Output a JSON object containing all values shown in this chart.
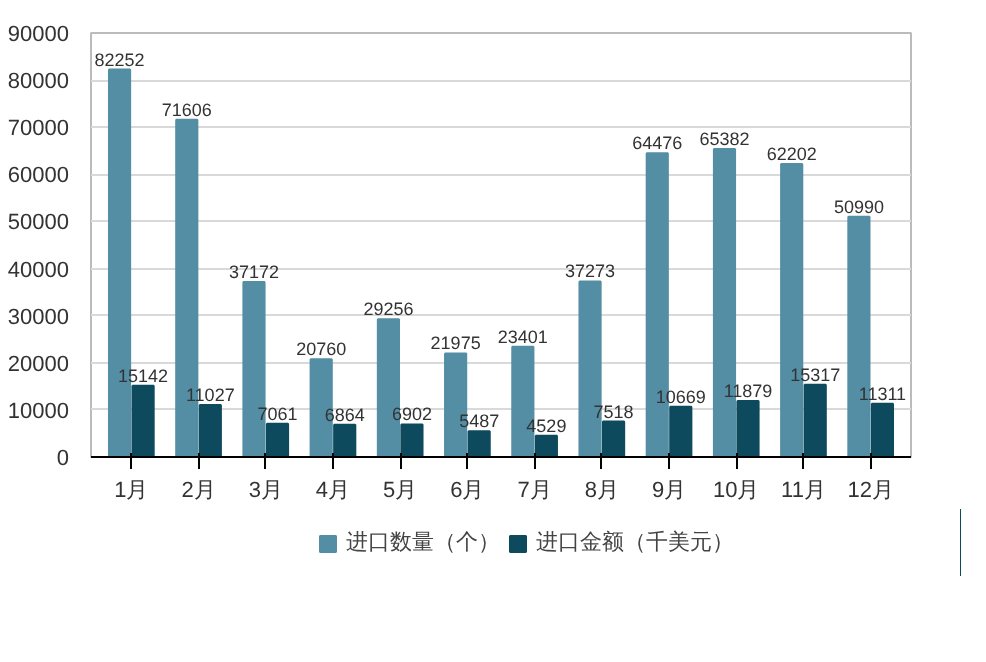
{
  "chart_data": {
    "type": "bar",
    "categories": [
      "1月",
      "2月",
      "3月",
      "4月",
      "5月",
      "6月",
      "7月",
      "8月",
      "9月",
      "10月",
      "11月",
      "12月"
    ],
    "series": [
      {
        "name": "进口数量（个）",
        "color": "#538ea5",
        "values": [
          82252,
          71606,
          37172,
          20760,
          29256,
          21975,
          23401,
          37273,
          64476,
          65382,
          62202,
          50990
        ]
      },
      {
        "name": "进口金额（千美元）",
        "color": "#0e4a5e",
        "values": [
          15142,
          11027,
          7061,
          6864,
          6902,
          5487,
          4529,
          7518,
          10669,
          11879,
          15317,
          11311
        ]
      }
    ],
    "ylim": [
      0,
      90000
    ],
    "yticks": [
      0,
      10000,
      20000,
      30000,
      40000,
      50000,
      60000,
      70000,
      80000,
      90000
    ],
    "grid": "y",
    "legend": "bottom",
    "data_labels": true
  }
}
